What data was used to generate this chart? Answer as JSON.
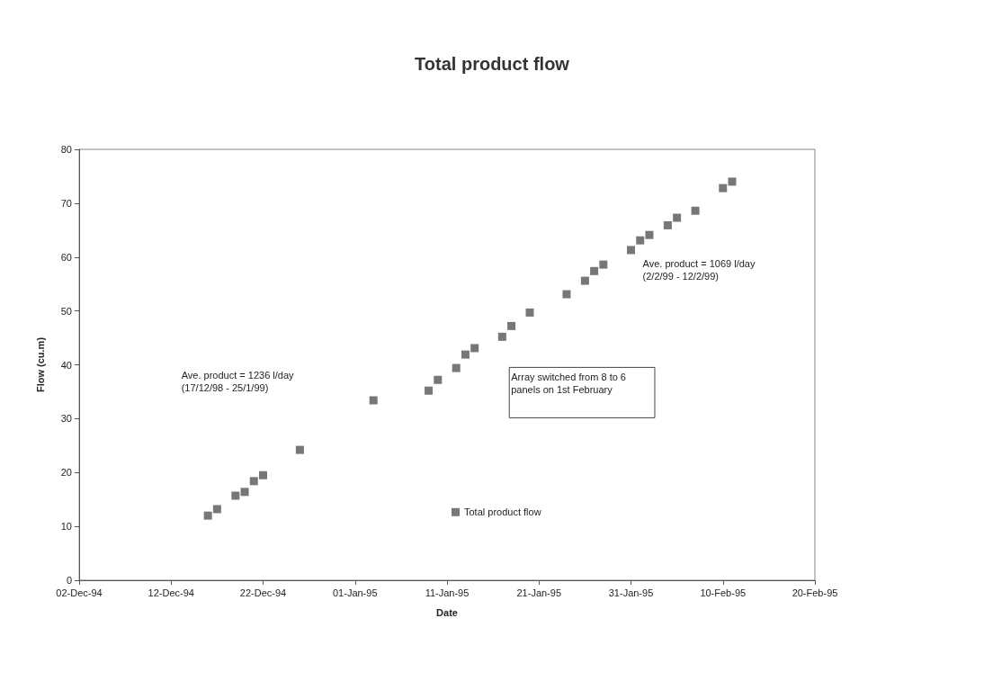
{
  "chart_data": {
    "type": "scatter",
    "title": "Total product flow",
    "xlabel": "Date",
    "ylabel": "Flow (cu.m)",
    "x": [
      "1994-12-16",
      "1994-12-17",
      "1994-12-19",
      "1994-12-20",
      "1994-12-21",
      "1994-12-22",
      "1994-12-26",
      "1995-01-03",
      "1995-01-09",
      "1995-01-10",
      "1995-01-12",
      "1995-01-13",
      "1995-01-14",
      "1995-01-17",
      "1995-01-18",
      "1995-01-20",
      "1995-01-24",
      "1995-01-26",
      "1995-01-27",
      "1995-01-28",
      "1995-01-31",
      "1995-02-01",
      "1995-02-02",
      "1995-02-04",
      "1995-02-05",
      "1995-02-07",
      "1995-02-10",
      "1995-02-11"
    ],
    "series": [
      {
        "name": "Total product flow",
        "color": "#555555",
        "values": [
          12,
          13.2,
          15.7,
          16.4,
          18.4,
          19.5,
          24.2,
          33.4,
          35.2,
          37.2,
          39.4,
          41.9,
          43.1,
          45.2,
          47.2,
          49.7,
          53.1,
          55.6,
          57.4,
          58.6,
          61.3,
          63.1,
          64.1,
          65.9,
          67.3,
          68.6,
          72.8,
          74
        ]
      }
    ],
    "xlim": [
      "1994-12-02",
      "1995-02-20"
    ],
    "xticks": [
      {
        "value": "1994-12-02",
        "label": "02-Dec-94"
      },
      {
        "value": "1994-12-12",
        "label": "12-Dec-94"
      },
      {
        "value": "1994-12-22",
        "label": "22-Dec-94"
      },
      {
        "value": "1995-01-01",
        "label": "01-Jan-95"
      },
      {
        "value": "1995-01-11",
        "label": "11-Jan-95"
      },
      {
        "value": "1995-01-21",
        "label": "21-Jan-95"
      },
      {
        "value": "1995-01-31",
        "label": "31-Jan-95"
      },
      {
        "value": "1995-02-10",
        "label": "10-Feb-95"
      },
      {
        "value": "1995-02-20",
        "label": "20-Feb-95"
      }
    ],
    "ylim": [
      0,
      80
    ],
    "yticks": [
      0,
      10,
      20,
      30,
      40,
      50,
      60,
      70,
      80
    ],
    "marker": "square",
    "legend": "bottom",
    "grid": false,
    "annotations": [
      "Ave. product = 1236 l/day\n(17/12/98 - 25/1/99)",
      "Ave. product = 1069 l/day\n(2/2/99 - 12/2/99)",
      "Array switched from 8 to 6\npanels on 1st February"
    ]
  }
}
